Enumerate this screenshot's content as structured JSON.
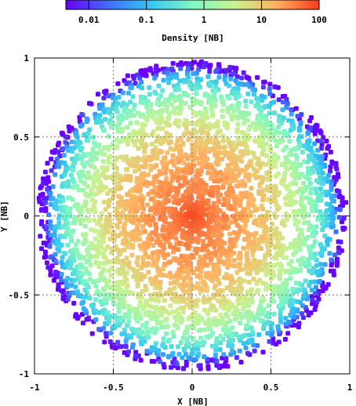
{
  "chart_data": {
    "type": "scatter",
    "title": "",
    "xlabel": "X [NB]",
    "ylabel": "Y [NB]",
    "xlim": [
      -1,
      1
    ],
    "ylim": [
      -1,
      1
    ],
    "xticks": [
      {
        "value": -1,
        "label": "-1"
      },
      {
        "value": -0.5,
        "label": "-0.5"
      },
      {
        "value": 0,
        "label": "0"
      },
      {
        "value": 0.5,
        "label": "0.5"
      },
      {
        "value": 1,
        "label": "1"
      }
    ],
    "yticks": [
      {
        "value": -1,
        "label": "-1"
      },
      {
        "value": -0.5,
        "label": "-0.5"
      },
      {
        "value": 0,
        "label": "0"
      },
      {
        "value": 0.5,
        "label": "0.5"
      },
      {
        "value": 1,
        "label": "1"
      }
    ],
    "grid": true,
    "colorbar": {
      "label": "Density [NB]",
      "scale": "log",
      "range": [
        0.004,
        100
      ],
      "ticks": [
        {
          "value": 0.01,
          "label": "0.01"
        },
        {
          "value": 0.1,
          "label": "0.1"
        },
        {
          "value": 1,
          "label": "1"
        },
        {
          "value": 10,
          "label": "10"
        },
        {
          "value": 100,
          "label": "100"
        }
      ],
      "colors": [
        "#6a00ff",
        "#3f6dff",
        "#33c8f4",
        "#7ef7c2",
        "#c9f28f",
        "#ffb060",
        "#ff3a1a"
      ]
    },
    "distribution": {
      "shape": "disk",
      "center": [
        0,
        0
      ],
      "radius": 0.98,
      "peak_density": 100,
      "edge_density": 0.004
    }
  }
}
